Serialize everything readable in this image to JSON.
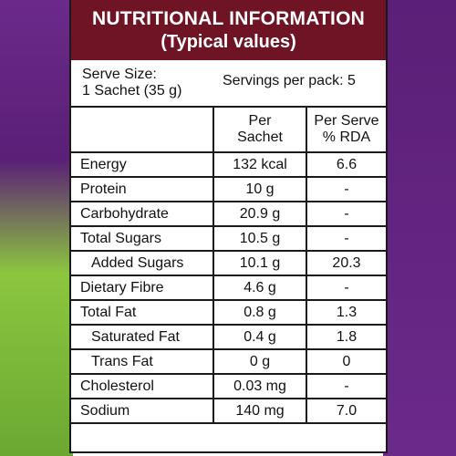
{
  "header": {
    "title": "NUTRITIONAL INFORMATION",
    "subtitle": "(Typical values)"
  },
  "serve": {
    "size_label": "Serve Size:",
    "size_value": "1 Sachet (35 g)",
    "servings": "Servings per pack: 5"
  },
  "table": {
    "col2_header_line1": "Per",
    "col2_header_line2": "Sachet",
    "col3_header_line1": "Per Serve",
    "col3_header_line2": "% RDA",
    "rows": [
      {
        "name": "Energy",
        "per_sachet": "132 kcal",
        "rda": "6.6"
      },
      {
        "name": "Protein",
        "per_sachet": "10 g",
        "rda": "-"
      },
      {
        "name": "Carbohydrate",
        "per_sachet": "20.9 g",
        "rda": "-"
      },
      {
        "name": "Total Sugars",
        "per_sachet": "10.5 g",
        "rda": "-"
      },
      {
        "name": "Added Sugars",
        "per_sachet": "10.1 g",
        "rda": "20.3"
      },
      {
        "name": "Dietary Fibre",
        "per_sachet": "4.6 g",
        "rda": "-"
      },
      {
        "name": "Total Fat",
        "per_sachet": "0.8 g",
        "rda": "1.3"
      },
      {
        "name": "Saturated Fat",
        "per_sachet": "0.4 g",
        "rda": "1.8"
      },
      {
        "name": "Trans Fat",
        "per_sachet": "0 g",
        "rda": "0"
      },
      {
        "name": "Cholesterol",
        "per_sachet": "0.03 mg",
        "rda": "-"
      },
      {
        "name": "Sodium",
        "per_sachet": "140 mg",
        "rda": "7.0"
      }
    ]
  },
  "colors": {
    "header_bg": "#6e1424",
    "packaging_purple": "#5a1f77",
    "packaging_green": "#8cc63f"
  }
}
